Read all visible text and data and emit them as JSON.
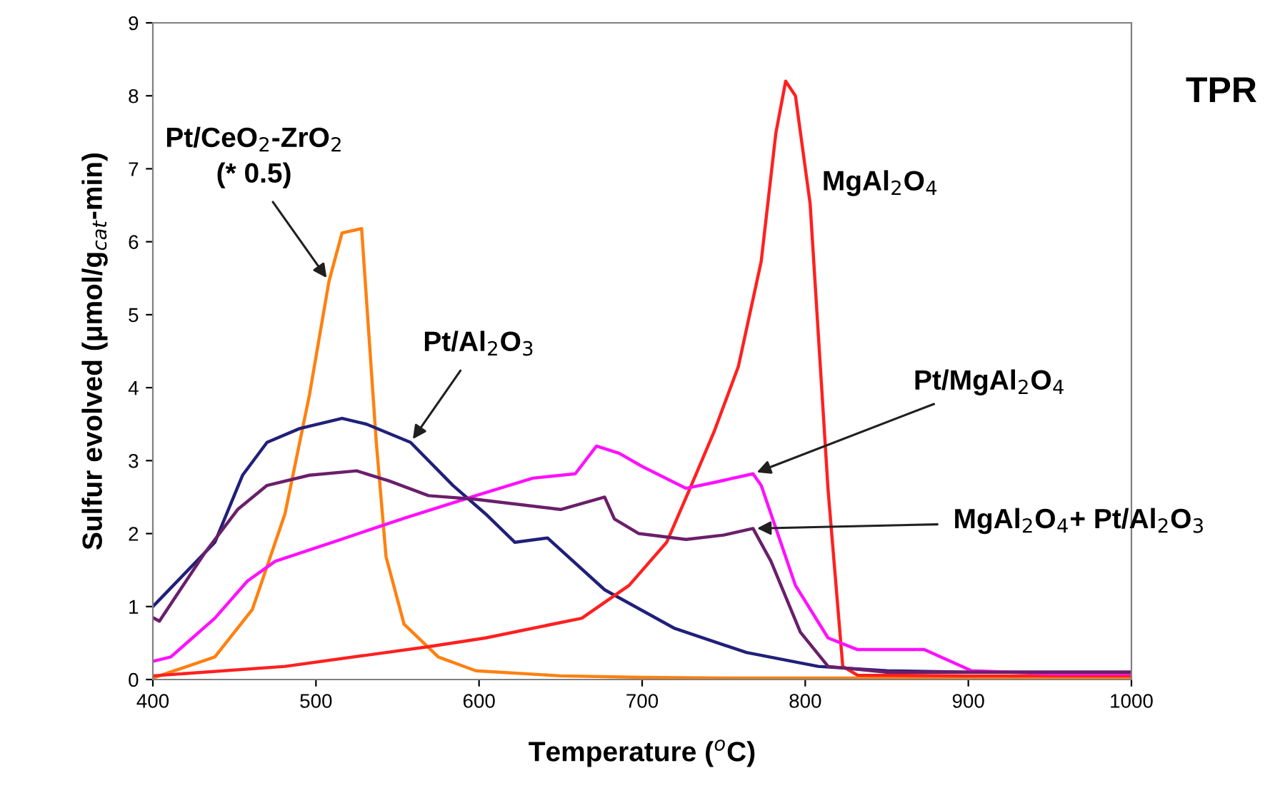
{
  "chart_data": {
    "type": "line",
    "xlabel": "Temperature ($^{o}$C)",
    "ylabel": "Sulfur evolved (μmol/g$_{cat}$-min)",
    "xlim": [
      400,
      1000
    ],
    "xticks": [
      400,
      500,
      600,
      700,
      800,
      900,
      1000
    ],
    "ylim": [
      0,
      9
    ],
    "yticks": [
      0,
      1,
      2,
      3,
      4,
      5,
      6,
      7,
      8,
      9
    ],
    "grid": false,
    "marker": "none",
    "line_style": "solid",
    "series": [
      {
        "color": "#ff8010",
        "x": [
          400,
          438,
          461,
          481,
          496,
          508,
          516,
          528,
          531,
          537,
          543,
          554,
          575,
          598,
          650,
          700,
          750,
          800,
          900,
          1000
        ],
        "values": [
          0.02,
          0.31,
          0.96,
          2.27,
          3.9,
          5.46,
          6.12,
          6.18,
          5.2,
          3.25,
          1.68,
          0.76,
          0.31,
          0.12,
          0.05,
          0.03,
          0.02,
          0.02,
          0.02,
          0.02
        ]
      },
      {
        "color": "#20207a",
        "x": [
          400,
          438,
          455,
          470,
          490,
          516,
          531,
          558,
          584,
          604,
          622,
          642,
          677,
          720,
          764,
          808,
          850,
          900,
          1000
        ],
        "values": [
          1.0,
          1.88,
          2.8,
          3.25,
          3.44,
          3.58,
          3.5,
          3.25,
          2.66,
          2.27,
          1.88,
          1.94,
          1.23,
          0.7,
          0.37,
          0.18,
          0.12,
          0.1,
          0.1
        ]
      },
      {
        "color": "#ff2020",
        "x": [
          400,
          481,
          569,
          604,
          663,
          692,
          715,
          729,
          744,
          759,
          773,
          782,
          788,
          794,
          803,
          814,
          823,
          832,
          900,
          1000
        ],
        "values": [
          0.05,
          0.18,
          0.45,
          0.57,
          0.84,
          1.29,
          1.88,
          2.6,
          3.39,
          4.29,
          5.73,
          7.49,
          8.2,
          8.0,
          6.52,
          2.6,
          0.18,
          0.06,
          0.05,
          0.05
        ]
      },
      {
        "color": "#ff10ff",
        "x": [
          400,
          411,
          438,
          458,
          475,
          510,
          554,
          598,
          633,
          659,
          672,
          686,
          700,
          727,
          744,
          768,
          773,
          794,
          814,
          832,
          873,
          902,
          950,
          1000
        ],
        "values": [
          0.25,
          0.31,
          0.84,
          1.35,
          1.62,
          1.88,
          2.21,
          2.52,
          2.76,
          2.82,
          3.2,
          3.1,
          2.92,
          2.62,
          2.7,
          2.82,
          2.66,
          1.29,
          0.57,
          0.41,
          0.41,
          0.12,
          0.08,
          0.08
        ]
      },
      {
        "color": "#6a1f6a",
        "x": [
          400,
          404,
          432,
          452,
          470,
          496,
          525,
          545,
          569,
          598,
          650,
          677,
          683,
          698,
          727,
          750,
          768,
          779,
          797,
          814,
          850,
          900,
          1000
        ],
        "values": [
          0.85,
          0.8,
          1.74,
          2.33,
          2.66,
          2.8,
          2.86,
          2.72,
          2.52,
          2.47,
          2.33,
          2.5,
          2.2,
          2.0,
          1.92,
          1.98,
          2.07,
          1.62,
          0.65,
          0.18,
          0.1,
          0.1,
          0.1
        ]
      }
    ],
    "annotations": [
      "Pt/CeO$_{2}$-ZrO$_{2}$",
      {
        "text": "(* 0.5)",
        "x": 508,
        "y": 5.46
      },
      {
        "text": "Pt/Al$_{2}$O$_{3}$",
        "x": 558,
        "y": 3.25
      },
      {
        "text": "MgAl$_{2}$O$_{4}$",
        "x": 794,
        "y": 8.0
      },
      {
        "text": "Pt/MgAl$_{2}$O$_{4}$",
        "x": 768,
        "y": 2.82
      },
      {
        "text": "MgAl$_{2}$O$_{4}$+ Pt/Al$_{2}$O$_{3}$",
        "x": 768,
        "y": 2.07
      },
      "TPR"
    ]
  }
}
